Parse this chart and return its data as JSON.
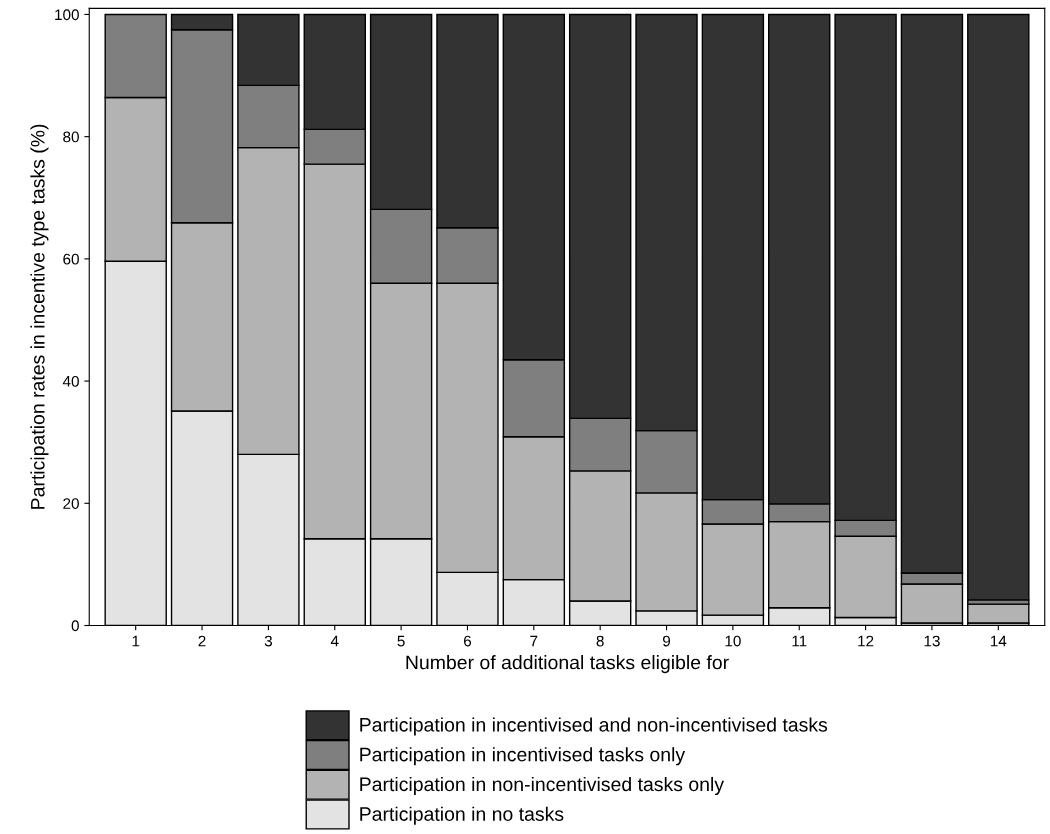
{
  "chart_data": {
    "type": "bar",
    "stacked": true,
    "xlabel": "Number of additional tasks eligible for",
    "ylabel": "Participation rates in incentive type tasks (%)",
    "categories": [
      "1",
      "2",
      "3",
      "4",
      "5",
      "6",
      "7",
      "8",
      "9",
      "10",
      "11",
      "12",
      "13",
      "14"
    ],
    "series": [
      {
        "name": "Participation in no tasks",
        "color": "#e3e3e3",
        "values": [
          59.6,
          35.1,
          28.0,
          14.2,
          14.2,
          8.7,
          7.5,
          4.0,
          2.4,
          1.7,
          2.9,
          1.3,
          0.4,
          0.4
        ]
      },
      {
        "name": "Participation in non-incentivised tasks only",
        "color": "#b3b3b3",
        "values": [
          26.8,
          30.8,
          50.2,
          61.3,
          41.8,
          47.3,
          23.4,
          21.3,
          19.3,
          14.9,
          14.1,
          13.3,
          6.4,
          3.1
        ]
      },
      {
        "name": "Participation in incentivised tasks only",
        "color": "#7f7f7f",
        "values": [
          13.6,
          31.6,
          10.2,
          5.7,
          12.1,
          9.1,
          12.6,
          8.6,
          10.2,
          4.0,
          2.9,
          2.6,
          1.8,
          0.7
        ]
      },
      {
        "name": "Participation in incentivised and non-incentivised tasks",
        "color": "#333333",
        "values": [
          null,
          2.5,
          11.6,
          18.8,
          31.9,
          34.9,
          56.5,
          66.1,
          68.1,
          79.4,
          80.1,
          82.8,
          91.4,
          95.8
        ]
      }
    ],
    "ylim": [
      0,
      101
    ],
    "yticks": [
      0,
      20,
      40,
      60,
      80,
      100
    ],
    "grid": false,
    "legend": "bottom"
  }
}
